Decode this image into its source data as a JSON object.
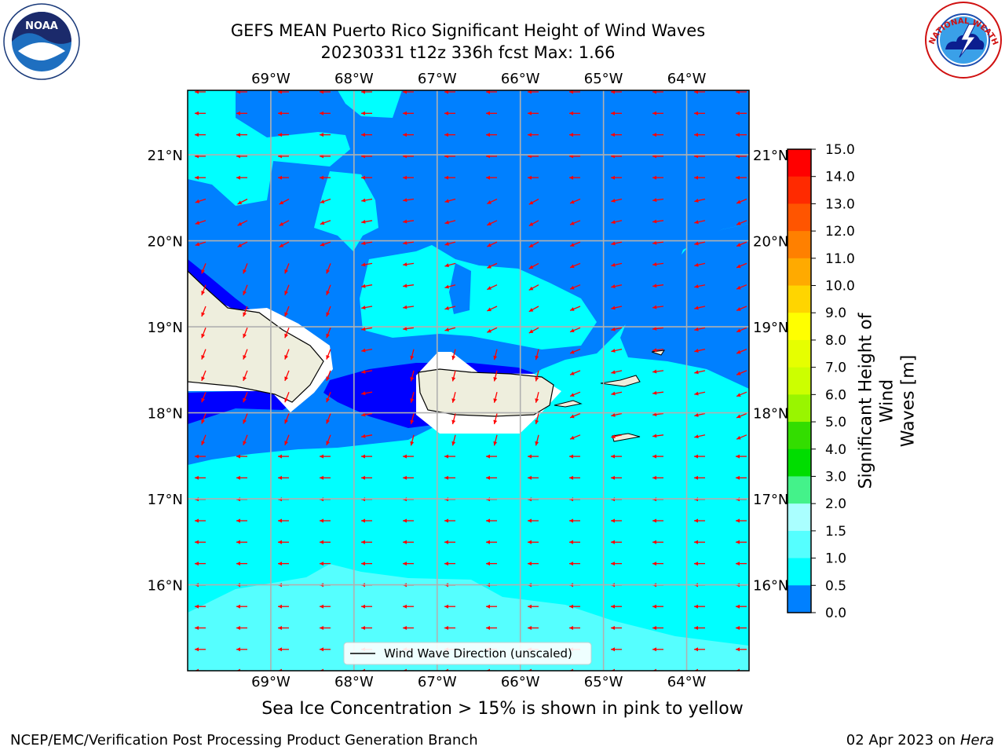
{
  "title": {
    "line1": "GEFS MEAN Puerto Rico Significant Height of Wind Waves",
    "line2": "20230331 t12z 336h fcst   Max: 1.66"
  },
  "subtitle": "Sea Ice Concentration > 15% is shown in pink to yellow",
  "footer": {
    "left": "NCEP/EMC/Verification Post Processing Product Generation Branch",
    "right_date": "02 Apr 2023 on ",
    "right_host": "Hera"
  },
  "legend": {
    "label": "Wind Wave Direction (unscaled)"
  },
  "axes": {
    "lon_labels": [
      "69°W",
      "68°W",
      "67°W",
      "66°W",
      "65°W",
      "64°W"
    ],
    "lat_labels": [
      "21°N",
      "20°N",
      "19°N",
      "18°N",
      "17°N",
      "16°N"
    ],
    "lon_range": [
      -70.0,
      -63.25
    ],
    "lat_range": [
      15.0,
      21.75
    ],
    "lon_ticks": [
      -69,
      -68,
      -67,
      -66,
      -65,
      -64
    ],
    "lat_ticks": [
      21,
      20,
      19,
      18,
      17,
      16
    ]
  },
  "colorbar": {
    "label_line1": "Significant Height of Wind",
    "label_line2": "Waves [m]",
    "ticks": [
      "15.0",
      "14.0",
      "13.0",
      "12.0",
      "11.0",
      "10.0",
      "9.0",
      "8.0",
      "7.0",
      "6.0",
      "5.0",
      "4.0",
      "3.0",
      "2.0",
      "1.5",
      "1.0",
      "0.5",
      "0.0"
    ],
    "colors": [
      "#ff0000",
      "#ff2a00",
      "#ff5500",
      "#ff8000",
      "#ffaa00",
      "#ffd500",
      "#ffff00",
      "#e6ff00",
      "#ccff00",
      "#99f500",
      "#33dd00",
      "#00dd00",
      "#44f28a",
      "#aaffff",
      "#55ffff",
      "#00ffff",
      "#0080ff",
      "#0000ff"
    ]
  },
  "field_colors": {
    "very_low": "#0000ff",
    "low": "#0080ff",
    "mid": "#00ffff",
    "high": "#55ffff",
    "land": "#eeeedd",
    "arrow": "#ff0000"
  },
  "logos": {
    "noaa_text": "NOAA",
    "nws_text": "NATIONAL WEATHER SERVICE"
  }
}
